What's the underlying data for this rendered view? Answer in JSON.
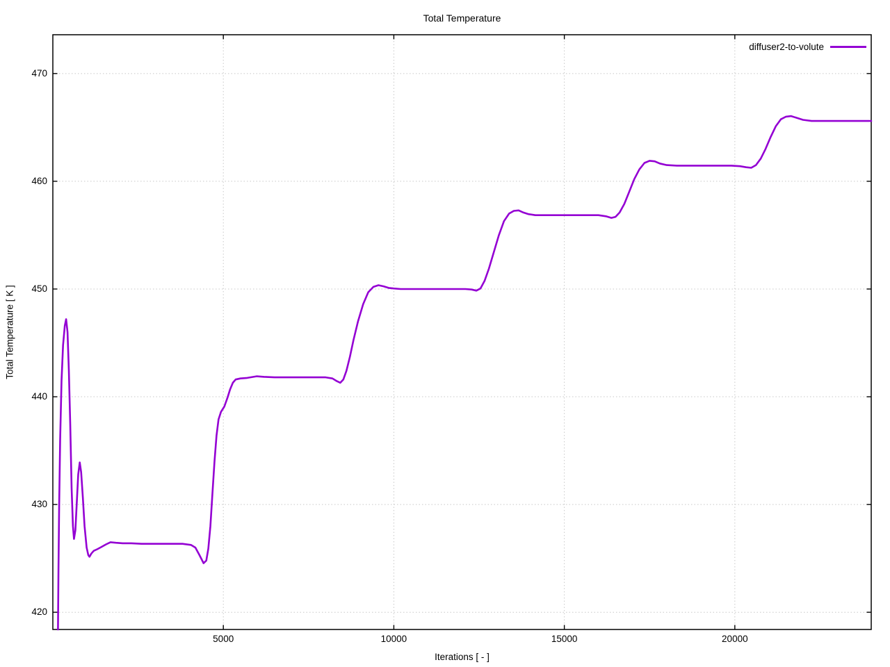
{
  "title": "Total Temperature",
  "legend": {
    "label": "diffuser2-to-volute"
  },
  "colors": {
    "line": "#9400D3",
    "grid": "#c8c8c8",
    "axis": "#000000",
    "background": "#ffffff"
  },
  "chart_data": {
    "type": "line",
    "title": "Total Temperature",
    "xlabel": "Iterations [ - ]",
    "ylabel": "Total Temperature [ K ]",
    "xlim": [
      0,
      24000
    ],
    "ylim": [
      418.4,
      473.6
    ],
    "x_ticks": [
      5000,
      10000,
      15000,
      20000
    ],
    "y_ticks": [
      420,
      430,
      440,
      450,
      460,
      470
    ],
    "grid": true,
    "grid_style": "dotted",
    "legend_position": "top-right-inside",
    "series": [
      {
        "name": "diffuser2-to-volute",
        "color": "#9400D3",
        "points": [
          [
            150,
            418.4
          ],
          [
            165,
            424.0
          ],
          [
            185,
            430.0
          ],
          [
            215,
            436.0
          ],
          [
            255,
            441.5
          ],
          [
            300,
            444.8
          ],
          [
            350,
            446.6
          ],
          [
            390,
            447.2
          ],
          [
            430,
            446.0
          ],
          [
            470,
            442.5
          ],
          [
            510,
            437.5
          ],
          [
            550,
            431.5
          ],
          [
            590,
            428.0
          ],
          [
            620,
            426.8
          ],
          [
            660,
            427.6
          ],
          [
            700,
            430.0
          ],
          [
            745,
            432.8
          ],
          [
            790,
            433.9
          ],
          [
            830,
            433.0
          ],
          [
            880,
            430.6
          ],
          [
            930,
            428.0
          ],
          [
            990,
            426.0
          ],
          [
            1040,
            425.3
          ],
          [
            1075,
            425.15
          ],
          [
            1130,
            425.45
          ],
          [
            1200,
            425.7
          ],
          [
            1300,
            425.85
          ],
          [
            1420,
            426.05
          ],
          [
            1560,
            426.3
          ],
          [
            1690,
            426.5
          ],
          [
            1850,
            426.45
          ],
          [
            2050,
            426.4
          ],
          [
            2300,
            426.4
          ],
          [
            2600,
            426.35
          ],
          [
            3000,
            426.35
          ],
          [
            3400,
            426.35
          ],
          [
            3800,
            426.35
          ],
          [
            4050,
            426.25
          ],
          [
            4180,
            426.0
          ],
          [
            4300,
            425.3
          ],
          [
            4420,
            424.55
          ],
          [
            4500,
            424.8
          ],
          [
            4560,
            425.9
          ],
          [
            4620,
            428.0
          ],
          [
            4680,
            431.0
          ],
          [
            4740,
            434.0
          ],
          [
            4800,
            436.4
          ],
          [
            4860,
            437.9
          ],
          [
            4930,
            438.6
          ],
          [
            5030,
            439.1
          ],
          [
            5120,
            439.9
          ],
          [
            5200,
            440.7
          ],
          [
            5280,
            441.3
          ],
          [
            5360,
            441.6
          ],
          [
            5500,
            441.7
          ],
          [
            5700,
            441.75
          ],
          [
            5975,
            441.9
          ],
          [
            6200,
            441.85
          ],
          [
            6500,
            441.8
          ],
          [
            6900,
            441.8
          ],
          [
            7300,
            441.8
          ],
          [
            7700,
            441.8
          ],
          [
            8000,
            441.8
          ],
          [
            8200,
            441.7
          ],
          [
            8330,
            441.45
          ],
          [
            8430,
            441.3
          ],
          [
            8520,
            441.6
          ],
          [
            8610,
            442.4
          ],
          [
            8710,
            443.7
          ],
          [
            8820,
            445.3
          ],
          [
            8950,
            447.0
          ],
          [
            9100,
            448.6
          ],
          [
            9250,
            449.7
          ],
          [
            9400,
            450.2
          ],
          [
            9550,
            450.35
          ],
          [
            9700,
            450.25
          ],
          [
            9850,
            450.1
          ],
          [
            10000,
            450.05
          ],
          [
            10200,
            450.0
          ],
          [
            10600,
            450.0
          ],
          [
            11000,
            450.0
          ],
          [
            11400,
            450.0
          ],
          [
            11800,
            450.0
          ],
          [
            12100,
            450.0
          ],
          [
            12280,
            449.95
          ],
          [
            12420,
            449.85
          ],
          [
            12540,
            450.05
          ],
          [
            12660,
            450.75
          ],
          [
            12790,
            451.9
          ],
          [
            12930,
            453.4
          ],
          [
            13080,
            455.0
          ],
          [
            13230,
            456.3
          ],
          [
            13380,
            457.0
          ],
          [
            13520,
            457.25
          ],
          [
            13660,
            457.3
          ],
          [
            13800,
            457.1
          ],
          [
            13950,
            456.95
          ],
          [
            14150,
            456.85
          ],
          [
            14450,
            456.85
          ],
          [
            14800,
            456.85
          ],
          [
            15200,
            456.85
          ],
          [
            15600,
            456.85
          ],
          [
            16000,
            456.85
          ],
          [
            16220,
            456.75
          ],
          [
            16380,
            456.6
          ],
          [
            16500,
            456.7
          ],
          [
            16620,
            457.1
          ],
          [
            16760,
            457.9
          ],
          [
            16900,
            459.0
          ],
          [
            17050,
            460.2
          ],
          [
            17200,
            461.1
          ],
          [
            17350,
            461.7
          ],
          [
            17500,
            461.9
          ],
          [
            17650,
            461.85
          ],
          [
            17800,
            461.65
          ],
          [
            18000,
            461.5
          ],
          [
            18300,
            461.45
          ],
          [
            18700,
            461.45
          ],
          [
            19100,
            461.45
          ],
          [
            19500,
            461.45
          ],
          [
            19900,
            461.45
          ],
          [
            20150,
            461.4
          ],
          [
            20330,
            461.3
          ],
          [
            20480,
            461.25
          ],
          [
            20620,
            461.5
          ],
          [
            20760,
            462.1
          ],
          [
            20900,
            463.0
          ],
          [
            21050,
            464.1
          ],
          [
            21200,
            465.1
          ],
          [
            21350,
            465.75
          ],
          [
            21500,
            466.0
          ],
          [
            21650,
            466.05
          ],
          [
            21800,
            465.9
          ],
          [
            22000,
            465.7
          ],
          [
            22250,
            465.6
          ],
          [
            22600,
            465.6
          ],
          [
            23100,
            465.6
          ],
          [
            23600,
            465.6
          ],
          [
            24000,
            465.6
          ]
        ]
      }
    ]
  }
}
